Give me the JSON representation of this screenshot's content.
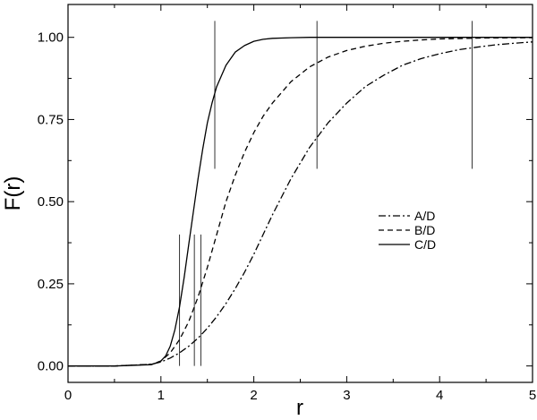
{
  "chart_data": {
    "type": "line",
    "title": "",
    "xlabel": "r",
    "ylabel": "F(r)",
    "xlim": [
      0,
      5
    ],
    "ylim": [
      -0.05,
      1.1
    ],
    "grid": false,
    "legend_position": "center-right",
    "x_ticks": [
      {
        "value": 0,
        "label": "0"
      },
      {
        "value": 1,
        "label": "1"
      },
      {
        "value": 2,
        "label": "2"
      },
      {
        "value": 3,
        "label": "3"
      },
      {
        "value": 4,
        "label": "4"
      },
      {
        "value": 5,
        "label": "5"
      }
    ],
    "y_ticks": [
      {
        "value": 0,
        "label": "0.00"
      },
      {
        "value": 0.25,
        "label": "0.25"
      },
      {
        "value": 0.5,
        "label": "0.50"
      },
      {
        "value": 0.75,
        "label": "0.75"
      },
      {
        "value": 1,
        "label": "1.00"
      }
    ],
    "series": [
      {
        "name": "A/D",
        "style": "dashdot",
        "color": "#000000",
        "x": [
          0,
          0.5,
          0.9,
          1.0,
          1.1,
          1.2,
          1.3,
          1.4,
          1.5,
          1.6,
          1.7,
          1.8,
          1.9,
          2.0,
          2.1,
          2.2,
          2.4,
          2.6,
          2.8,
          3.0,
          3.2,
          3.4,
          3.6,
          3.8,
          4.0,
          4.2,
          4.4,
          4.6,
          4.8,
          5.0
        ],
        "y": [
          0,
          0,
          0.005,
          0.012,
          0.024,
          0.04,
          0.06,
          0.085,
          0.115,
          0.15,
          0.19,
          0.235,
          0.285,
          0.34,
          0.4,
          0.46,
          0.57,
          0.665,
          0.74,
          0.8,
          0.85,
          0.885,
          0.915,
          0.935,
          0.95,
          0.962,
          0.97,
          0.977,
          0.982,
          0.986
        ]
      },
      {
        "name": "B/D",
        "style": "dashed",
        "color": "#000000",
        "x": [
          0,
          0.5,
          0.9,
          1.0,
          1.1,
          1.2,
          1.3,
          1.4,
          1.5,
          1.6,
          1.7,
          1.8,
          1.9,
          2.0,
          2.1,
          2.2,
          2.4,
          2.6,
          2.8,
          3.0,
          3.2,
          3.4,
          3.6,
          3.8,
          4.0,
          4.5,
          5.0
        ],
        "y": [
          0,
          0,
          0.005,
          0.015,
          0.04,
          0.08,
          0.135,
          0.21,
          0.3,
          0.4,
          0.5,
          0.58,
          0.65,
          0.71,
          0.76,
          0.8,
          0.865,
          0.91,
          0.94,
          0.96,
          0.973,
          0.982,
          0.988,
          0.992,
          0.995,
          0.998,
          0.999
        ]
      },
      {
        "name": "C/D",
        "style": "solid",
        "color": "#000000",
        "x": [
          0,
          0.5,
          0.9,
          1.0,
          1.05,
          1.1,
          1.15,
          1.2,
          1.25,
          1.3,
          1.35,
          1.4,
          1.45,
          1.5,
          1.55,
          1.6,
          1.7,
          1.8,
          1.9,
          2.0,
          2.1,
          2.2,
          2.4,
          2.6,
          3.0,
          4.0,
          5.0
        ],
        "y": [
          0,
          0,
          0.004,
          0.015,
          0.03,
          0.06,
          0.11,
          0.18,
          0.27,
          0.37,
          0.47,
          0.57,
          0.66,
          0.74,
          0.8,
          0.85,
          0.915,
          0.955,
          0.975,
          0.988,
          0.994,
          0.997,
          0.999,
          1.0,
          1.0,
          1.0,
          1.0
        ]
      }
    ],
    "markers": [
      {
        "x": 1.2,
        "y0": 0.0,
        "y1": 0.4
      },
      {
        "x": 1.36,
        "y0": 0.0,
        "y1": 0.4
      },
      {
        "x": 1.43,
        "y0": 0.0,
        "y1": 0.4
      },
      {
        "x": 1.58,
        "y0": 0.6,
        "y1": 1.05
      },
      {
        "x": 2.68,
        "y0": 0.6,
        "y1": 1.05
      },
      {
        "x": 4.35,
        "y0": 0.6,
        "y1": 1.05
      }
    ]
  }
}
